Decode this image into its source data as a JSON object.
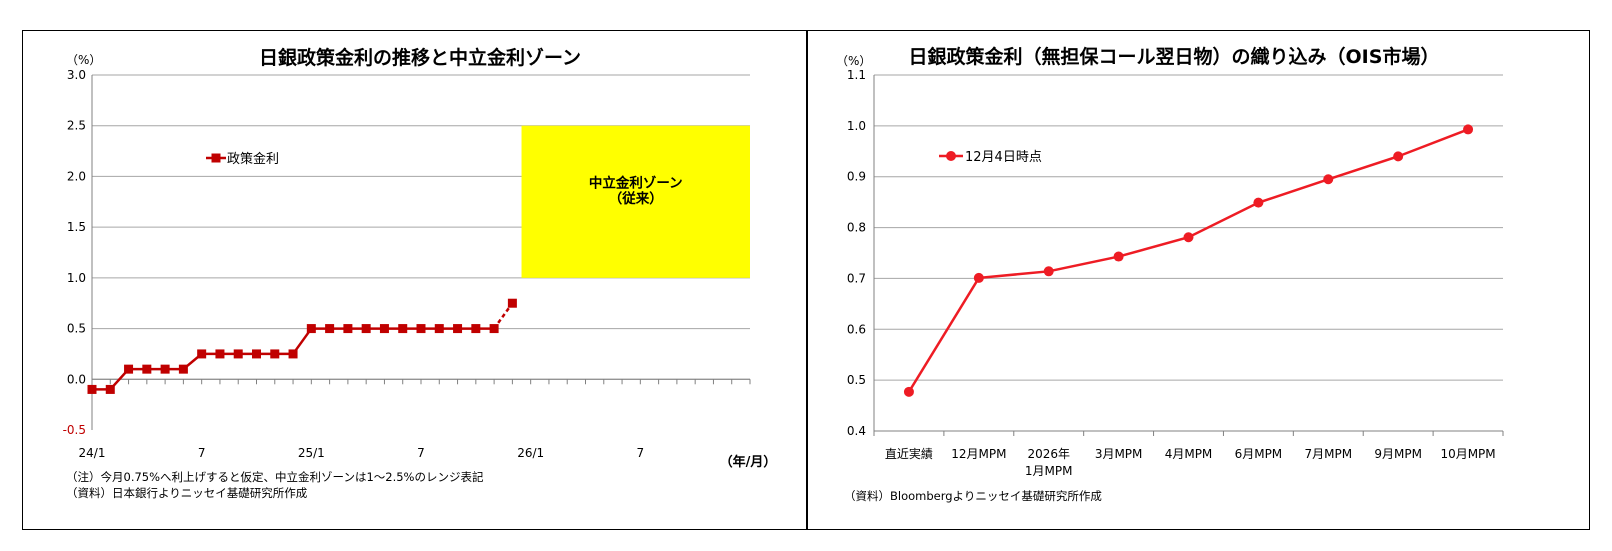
{
  "colors": {
    "line": "#c00000",
    "line2": "#ee1c24",
    "zone": "#ffff00",
    "grid": "#a6a6a6",
    "text": "#000000"
  },
  "chart_data": [
    {
      "type": "line",
      "title": "日銀政策金利の推移と中立金利ゾーン",
      "yunit": "（%）",
      "xunit": "（年/月）",
      "ylim": [
        -0.5,
        3.0
      ],
      "yticks": [
        "3.0",
        "2.5",
        "2.0",
        "1.5",
        "1.0",
        "0.5",
        "0.0",
        "-0.5"
      ],
      "ytick_values": [
        3.0,
        2.5,
        2.0,
        1.5,
        1.0,
        0.5,
        0.0,
        -0.5
      ],
      "xlim": [
        0,
        36
      ],
      "xticks": [
        {
          "label": "24/1",
          "x": 0
        },
        {
          "label": "7",
          "x": 6
        },
        {
          "label": "25/1",
          "x": 12
        },
        {
          "label": "7",
          "x": 18
        },
        {
          "label": "26/1",
          "x": 24
        },
        {
          "label": "7",
          "x": 30
        }
      ],
      "series": [
        {
          "name": "政策金利",
          "x": [
            0,
            1,
            2,
            3,
            4,
            5,
            6,
            7,
            8,
            9,
            10,
            11,
            12,
            13,
            14,
            15,
            16,
            17,
            18,
            19,
            20,
            21,
            22,
            23
          ],
          "values": [
            -0.1,
            -0.1,
            0.1,
            0.1,
            0.1,
            0.1,
            0.25,
            0.25,
            0.25,
            0.25,
            0.25,
            0.25,
            0.5,
            0.5,
            0.5,
            0.5,
            0.5,
            0.5,
            0.5,
            0.5,
            0.5,
            0.5,
            0.5,
            0.75
          ],
          "dashed_last_segment": true
        }
      ],
      "zone": {
        "label_line1": "中立金利ゾーン",
        "label_line2": "（従来）",
        "x_from": 23.5,
        "x_to": 36,
        "y_from": 1.0,
        "y_to": 2.5
      },
      "legend_position": "upper-left",
      "notes": [
        "（注）今月0.75%へ利上げすると仮定、中立金利ゾーンは1～2.5%のレンジ表記",
        "（資料）日本銀行よりニッセイ基礎研究所作成"
      ]
    },
    {
      "type": "line",
      "title": "日銀政策金利（無担保コール翌日物）の織り込み（OIS市場）",
      "yunit": "（%）",
      "ylim": [
        0.4,
        1.1
      ],
      "yticks": [
        "1.1",
        "1.0",
        "0.9",
        "0.8",
        "0.7",
        "0.6",
        "0.5",
        "0.4"
      ],
      "ytick_values": [
        1.1,
        1.0,
        0.9,
        0.8,
        0.7,
        0.6,
        0.5,
        0.4
      ],
      "categories": [
        {
          "line1": "直近実績",
          "line2": ""
        },
        {
          "line1": "12月MPM",
          "line2": ""
        },
        {
          "line1": "2026年",
          "line2": "1月MPM"
        },
        {
          "line1": "3月MPM",
          "line2": ""
        },
        {
          "line1": "4月MPM",
          "line2": ""
        },
        {
          "line1": "6月MPM",
          "line2": ""
        },
        {
          "line1": "7月MPM",
          "line2": ""
        },
        {
          "line1": "9月MPM",
          "line2": ""
        },
        {
          "line1": "10月MPM",
          "line2": ""
        }
      ],
      "series": [
        {
          "name": "12月4日時点",
          "values": [
            0.477,
            0.701,
            0.714,
            0.743,
            0.781,
            0.849,
            0.895,
            0.94,
            0.993
          ]
        }
      ],
      "legend_position": "upper-left",
      "notes": [
        "（資料）Bloombergよりニッセイ基礎研究所作成"
      ]
    }
  ]
}
